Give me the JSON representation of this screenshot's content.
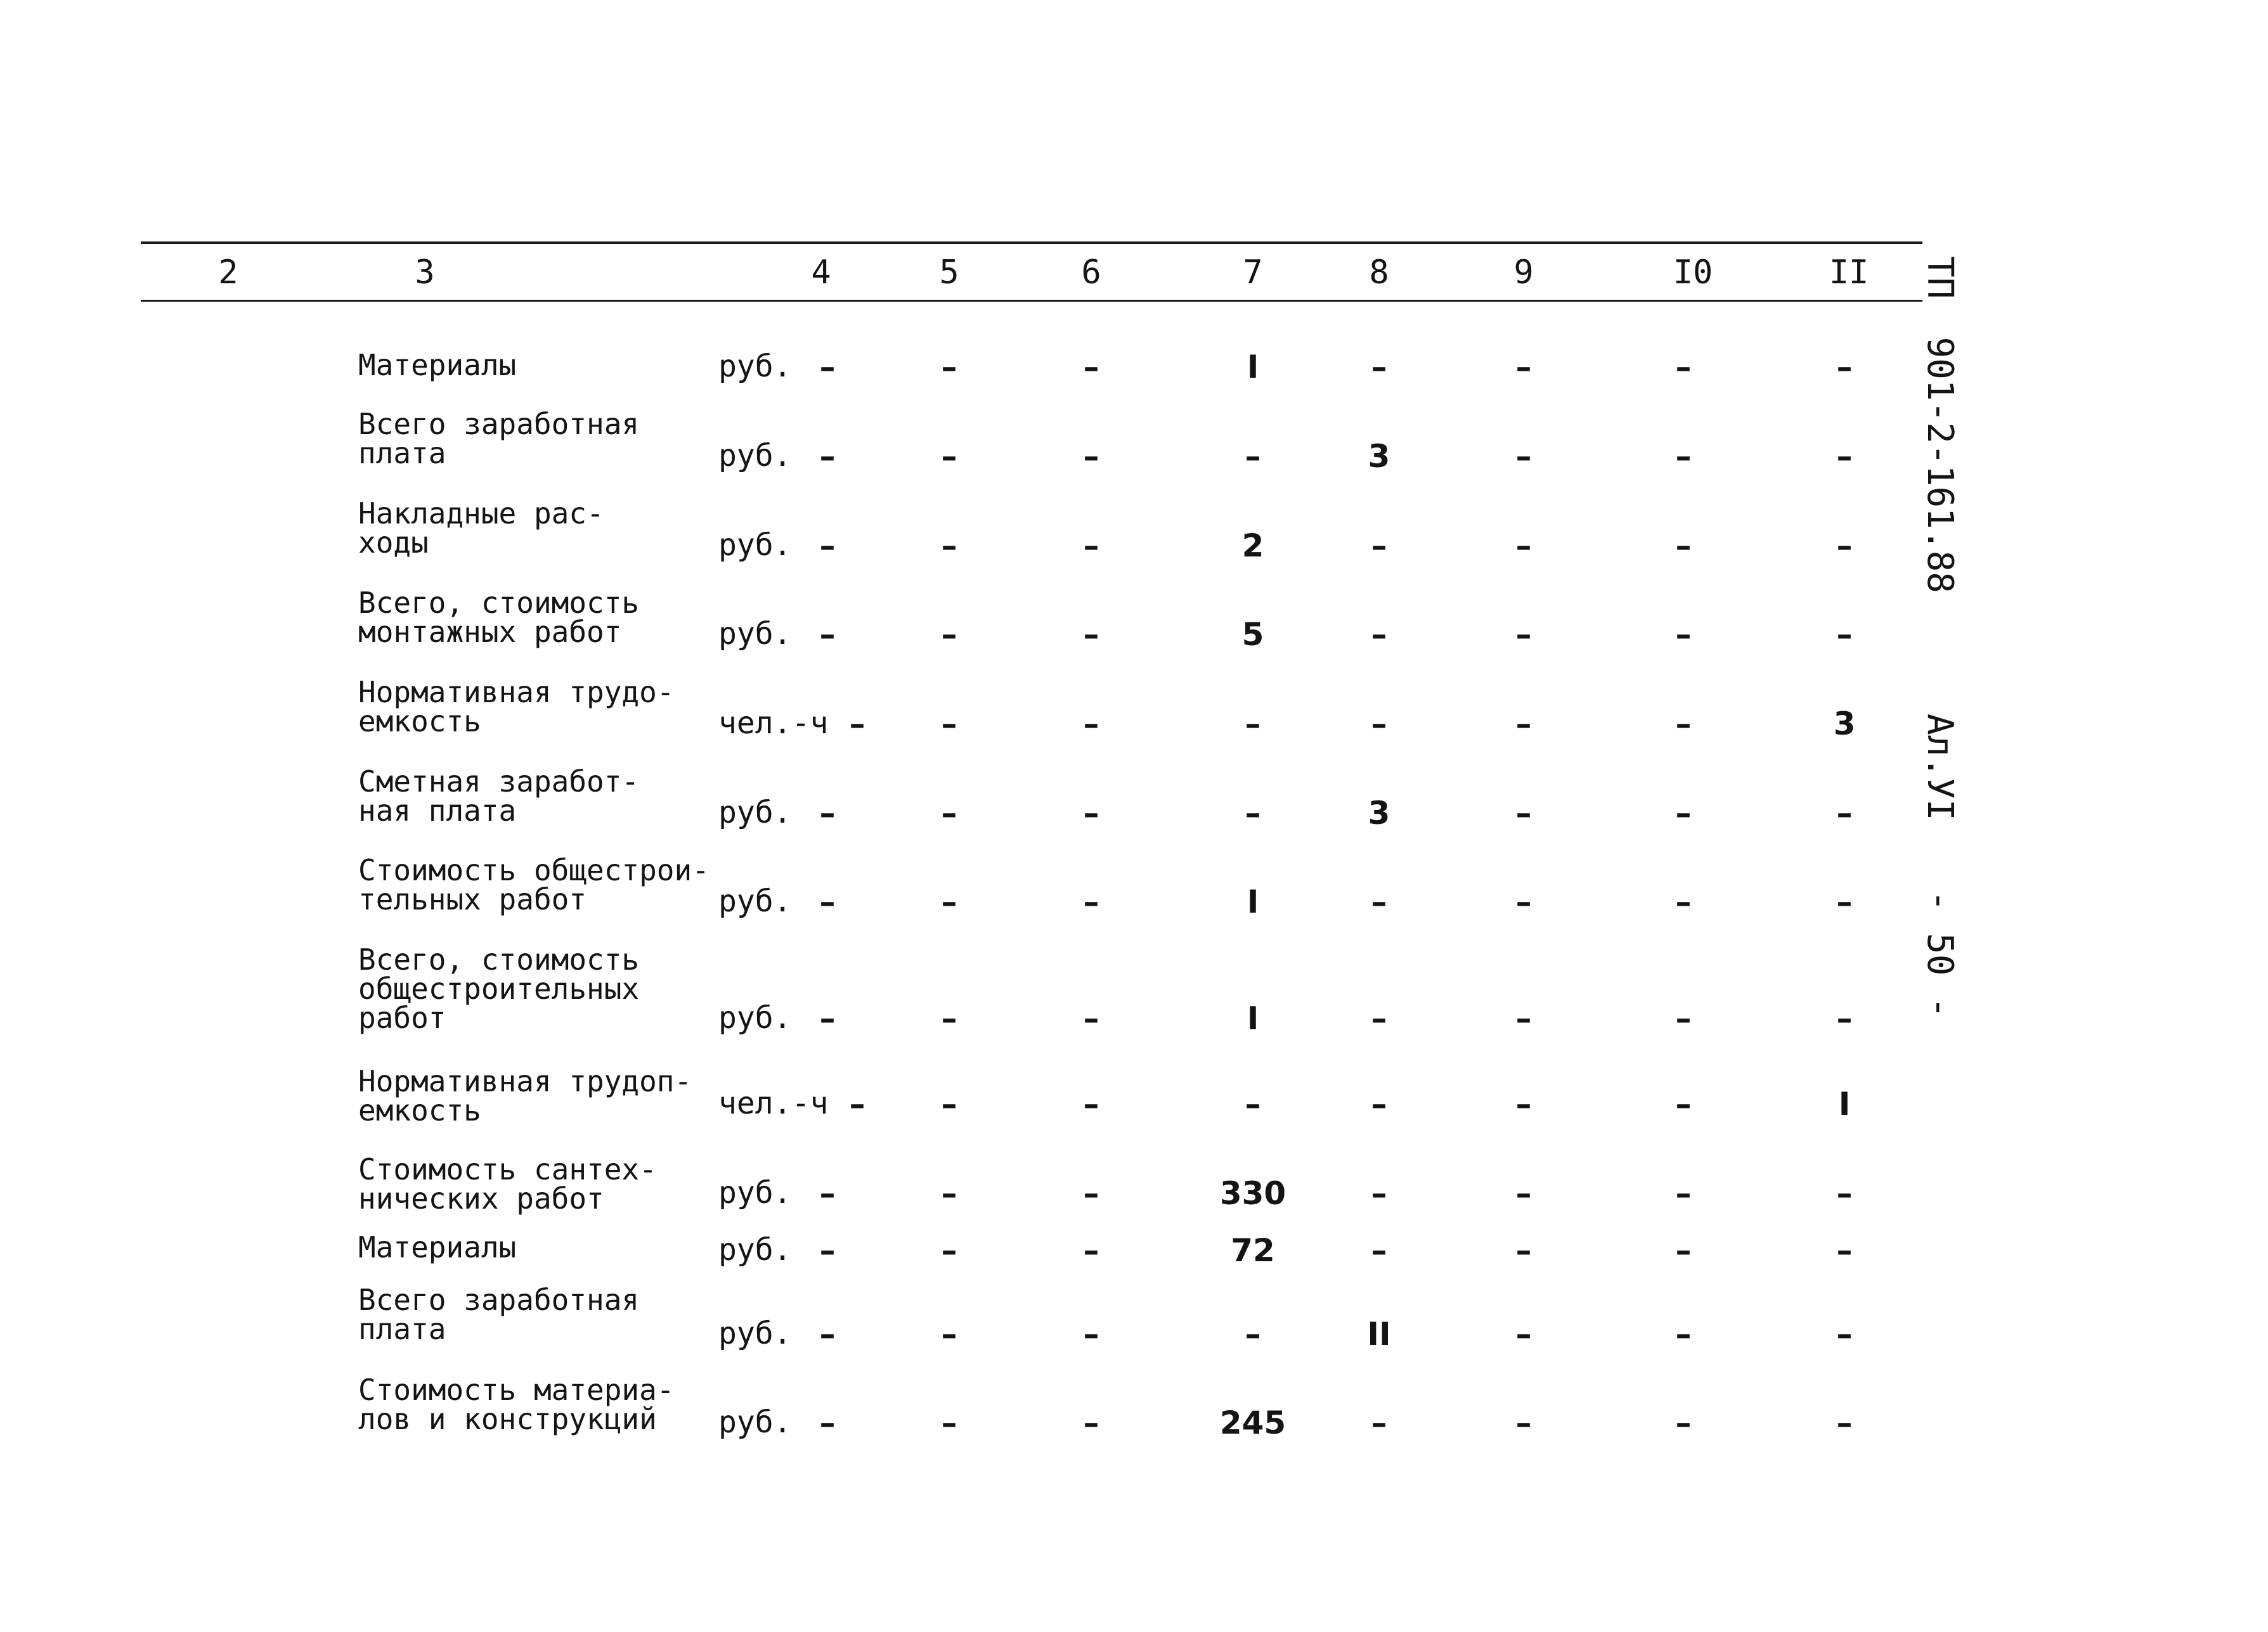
{
  "header_columns": [
    "2",
    "3",
    "4",
    "5",
    "6",
    "7",
    "8",
    "9",
    "I0",
    "II"
  ],
  "rows": [
    {
      "label": "Материалы",
      "unit": "руб.",
      "cells": [
        "–",
        "–",
        "–",
        "I",
        "–",
        "–",
        "–",
        "–"
      ]
    },
    {
      "label": "Всего заработная\nплата",
      "unit": "руб.",
      "cells": [
        "–",
        "–",
        "–",
        "–",
        "3",
        "–",
        "–",
        "–"
      ]
    },
    {
      "label": "Накладные рас-\nходы",
      "unit": "руб.",
      "cells": [
        "–",
        "–",
        "–",
        "2",
        "–",
        "–",
        "–",
        "–"
      ]
    },
    {
      "label": "Всего, стоимость\nмонтажных работ",
      "unit": "руб.",
      "cells": [
        "–",
        "–",
        "–",
        "5",
        "–",
        "–",
        "–",
        "–"
      ]
    },
    {
      "label": "Нормативная трудо-\nемкость",
      "unit": "чел.-ч",
      "cells": [
        "–",
        "–",
        "–",
        "–",
        "–",
        "–",
        "–",
        "3"
      ]
    },
    {
      "label": "Сметная заработ-\nная плата",
      "unit": "руб.",
      "cells": [
        "–",
        "–",
        "–",
        "–",
        "3",
        "–",
        "–",
        "–"
      ]
    },
    {
      "label": "Стоимость общестрои-\nтельных работ",
      "unit": "руб.",
      "cells": [
        "–",
        "–",
        "–",
        "I",
        "–",
        "–",
        "–",
        "–"
      ]
    },
    {
      "label": "Всего, стоимость\nобщестроительных\nработ",
      "unit": "руб.",
      "cells": [
        "–",
        "–",
        "–",
        "I",
        "–",
        "–",
        "–",
        "–"
      ]
    },
    {
      "label": "Нормативная трудоп-\nемкость",
      "unit": "чел.-ч",
      "cells": [
        "–",
        "–",
        "–",
        "–",
        "–",
        "–",
        "–",
        "I"
      ]
    },
    {
      "label": "Стоимость сантех-\nнических работ",
      "unit": "руб.",
      "cells": [
        "–",
        "–",
        "–",
        "330",
        "–",
        "–",
        "–",
        "–"
      ]
    },
    {
      "label": "Материалы",
      "unit": "руб.",
      "cells": [
        "–",
        "–",
        "–",
        "72",
        "–",
        "–",
        "–",
        "–"
      ]
    },
    {
      "label": "Всего заработная\nплата",
      "unit": "руб.",
      "cells": [
        "–",
        "–",
        "–",
        "–",
        "II",
        "–",
        "–",
        "–"
      ]
    },
    {
      "label": "Стоимость материа-\nлов и конструкций",
      "unit": "руб.",
      "cells": [
        "–",
        "–",
        "–",
        "245",
        "–",
        "–",
        "–",
        "–"
      ]
    }
  ],
  "side_text": {
    "code": "ТП",
    "project": "901-2-161.88",
    "album": "Ал.УI",
    "page": "- 50 -"
  }
}
